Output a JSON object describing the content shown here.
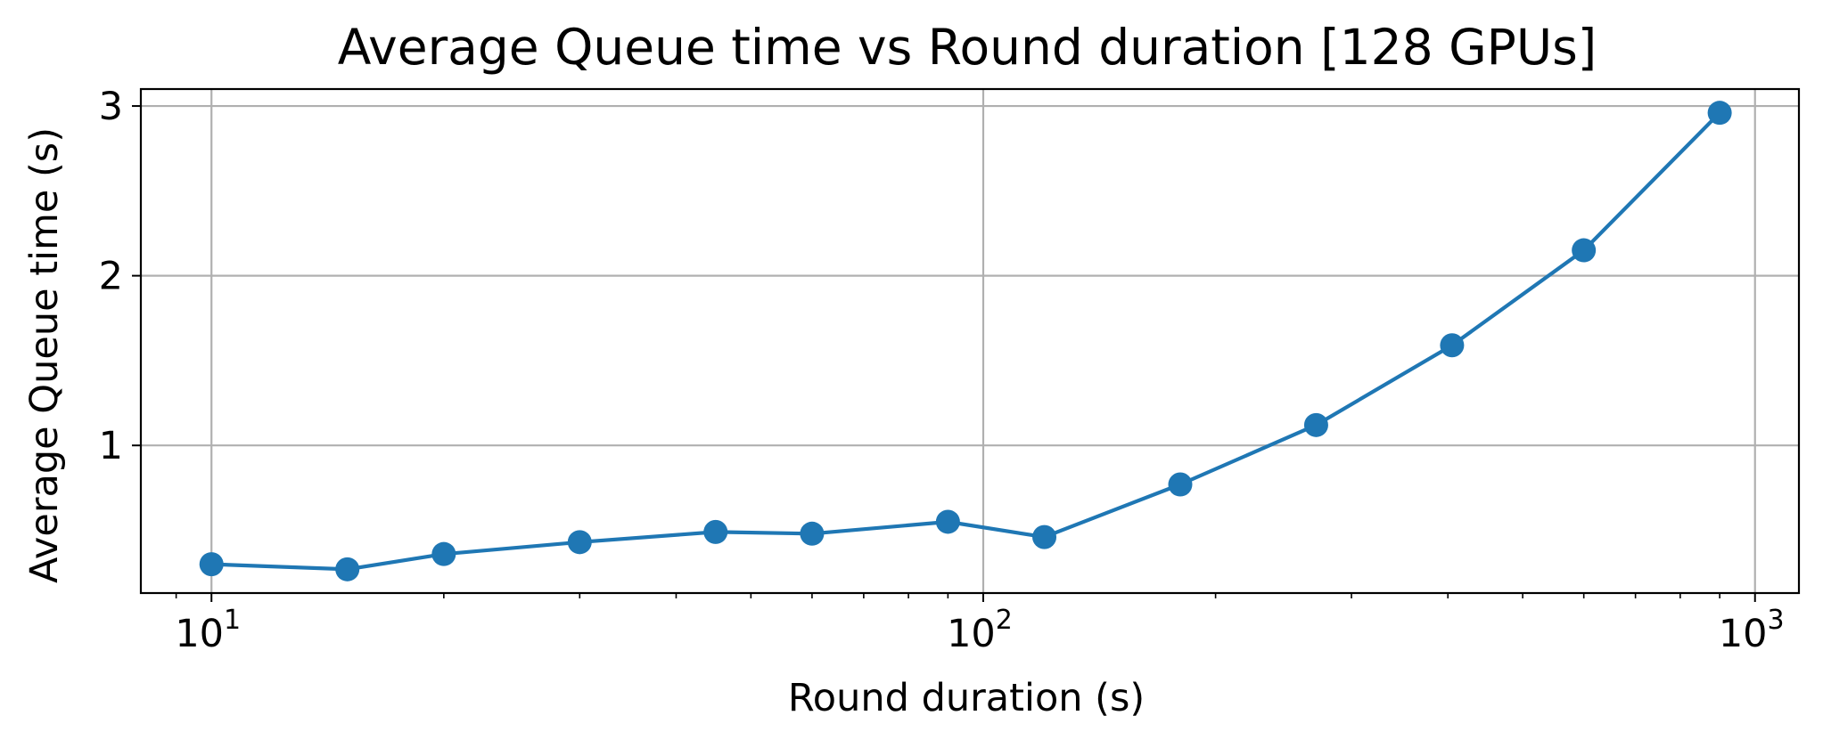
{
  "chart_data": {
    "type": "line",
    "title": "Average Queue time vs Round duration [128 GPUs]",
    "xlabel": "Round duration (s)",
    "ylabel": "Average Queue time (s)",
    "x_scale": "log",
    "xlim": [
      8.1,
      1140
    ],
    "ylim": [
      0.13,
      3.1
    ],
    "grid": true,
    "legend": "none",
    "x_ticks": [
      {
        "base": "10",
        "exp": "1",
        "value": 10
      },
      {
        "base": "10",
        "exp": "2",
        "value": 100
      },
      {
        "base": "10",
        "exp": "3",
        "value": 1000
      }
    ],
    "y_ticks": [
      {
        "label": "1",
        "value": 1
      },
      {
        "label": "2",
        "value": 2
      },
      {
        "label": "3",
        "value": 3
      }
    ],
    "series": [
      {
        "color": "#1f77b4",
        "marker": "circle",
        "x": [
          10,
          15,
          20,
          30,
          45,
          60,
          90,
          120,
          180,
          270,
          405,
          600,
          900
        ],
        "y": [
          0.3,
          0.27,
          0.36,
          0.43,
          0.49,
          0.48,
          0.55,
          0.46,
          0.77,
          1.12,
          1.59,
          2.15,
          2.96
        ]
      }
    ]
  }
}
